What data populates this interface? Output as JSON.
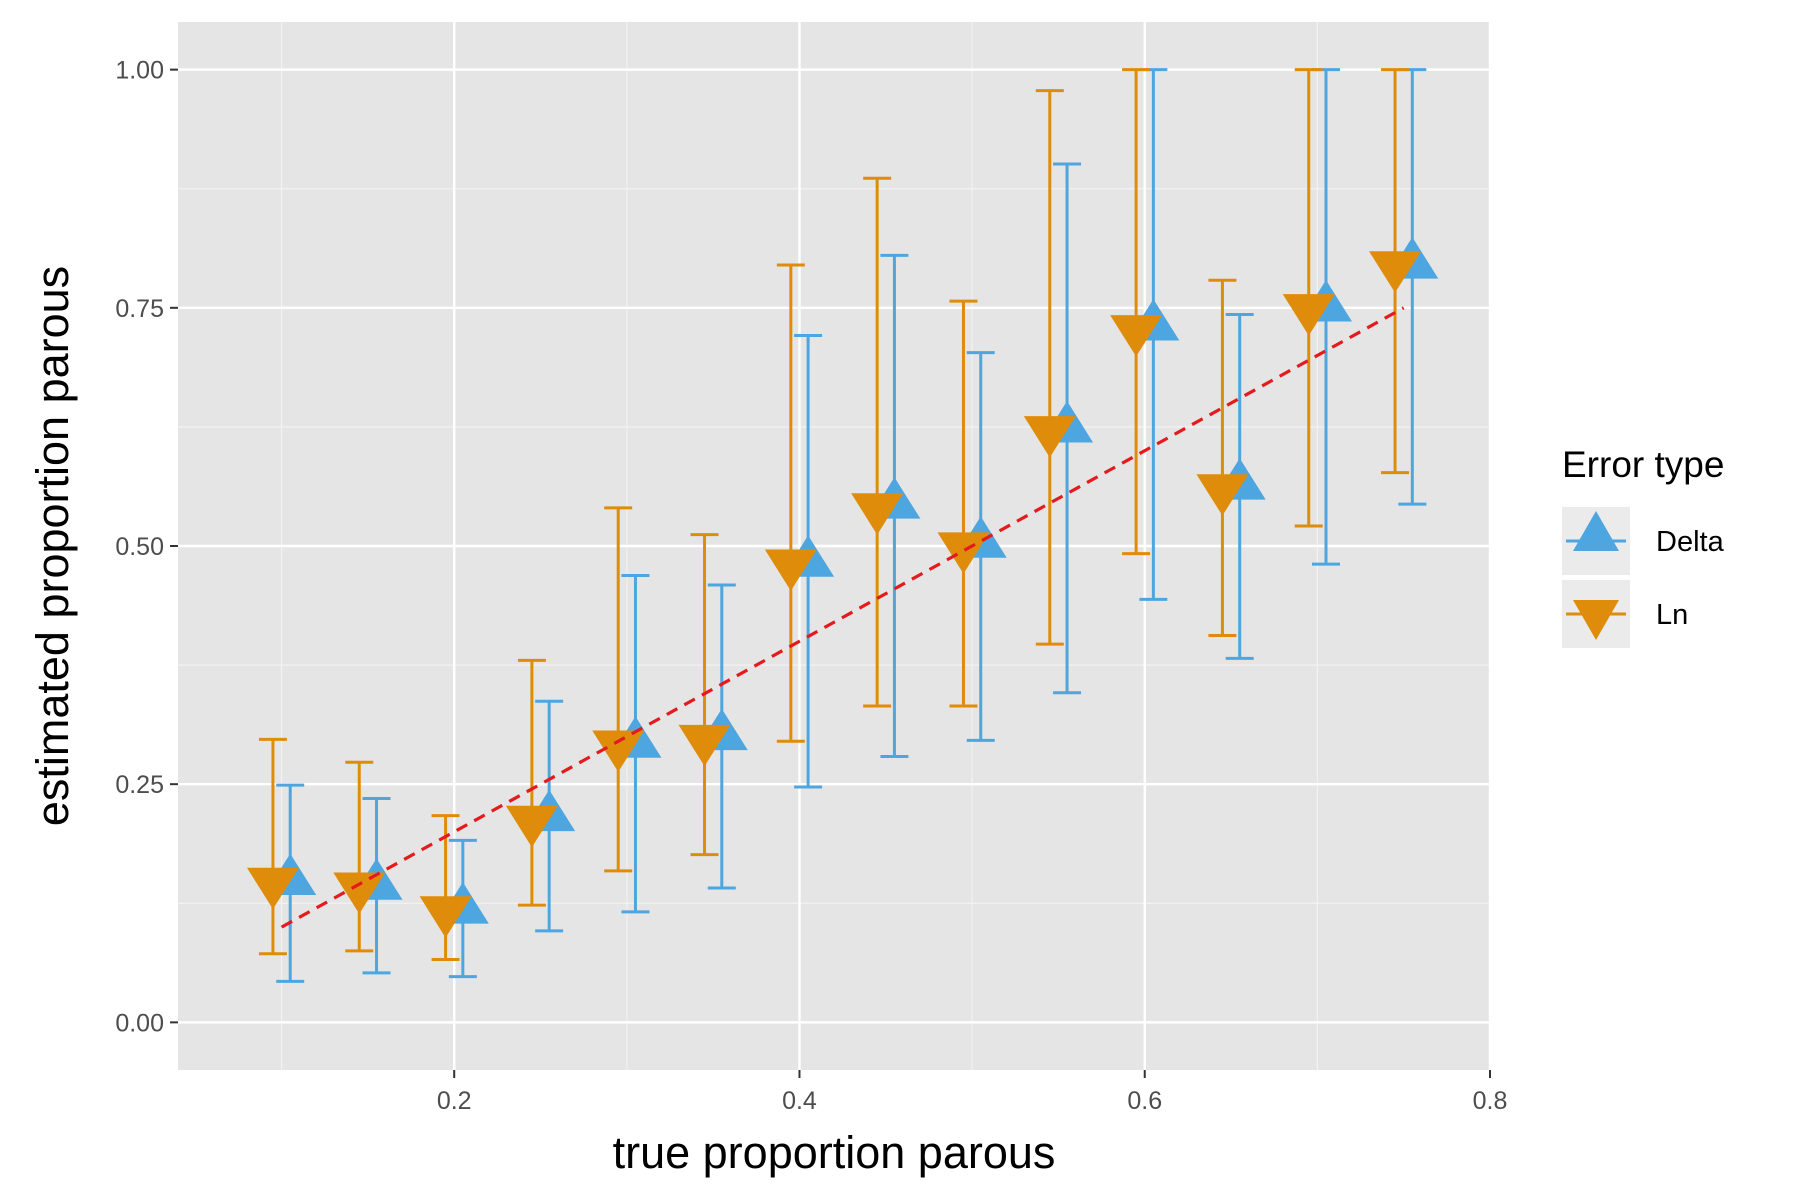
{
  "chart_data": {
    "type": "scatter",
    "xlabel": "true proportion parous",
    "ylabel": "estimated proportion parous",
    "xlim": [
      0.04,
      0.8
    ],
    "ylim": [
      -0.05,
      1.05
    ],
    "x_ticks": [
      0.2,
      0.4,
      0.6,
      0.8
    ],
    "x_tick_labels": [
      "0.2",
      "0.4",
      "0.6",
      "0.8"
    ],
    "y_ticks": [
      0.0,
      0.25,
      0.5,
      0.75,
      1.0
    ],
    "y_tick_labels": [
      "0.00",
      "0.25",
      "0.50",
      "0.75",
      "1.00"
    ],
    "grid": true,
    "legend": {
      "title": "Error type",
      "position": "right",
      "entries": [
        {
          "label": "Delta",
          "shape": "triangle-up",
          "color": "#4ea6e0"
        },
        {
          "label": "Ln",
          "shape": "triangle-down",
          "color": "#e08c0b"
        }
      ]
    },
    "reference_line": {
      "style": "dashed",
      "color": "#e41a1c",
      "x": [
        0.1,
        0.75
      ],
      "y": [
        0.1,
        0.75
      ]
    },
    "series": [
      {
        "name": "Delta",
        "color": "#4ea6e0",
        "marker": "triangle-up",
        "x": [
          0.105,
          0.155,
          0.205,
          0.255,
          0.305,
          0.355,
          0.405,
          0.455,
          0.505,
          0.555,
          0.605,
          0.655,
          0.705,
          0.755
        ],
        "y": [
          0.153,
          0.148,
          0.123,
          0.22,
          0.297,
          0.305,
          0.487,
          0.548,
          0.507,
          0.628,
          0.735,
          0.568,
          0.755,
          0.8
        ],
        "lower": [
          0.043,
          0.052,
          0.048,
          0.096,
          0.116,
          0.141,
          0.247,
          0.279,
          0.296,
          0.346,
          0.444,
          0.382,
          0.481,
          0.544
        ],
        "upper": [
          0.249,
          0.235,
          0.191,
          0.337,
          0.469,
          0.459,
          0.721,
          0.805,
          0.703,
          0.901,
          1.0,
          0.743,
          1.0,
          1.0
        ]
      },
      {
        "name": "Ln",
        "color": "#e08c0b",
        "marker": "triangle-down",
        "x": [
          0.095,
          0.145,
          0.195,
          0.245,
          0.295,
          0.345,
          0.395,
          0.445,
          0.495,
          0.545,
          0.595,
          0.645,
          0.695,
          0.745
        ],
        "y": [
          0.143,
          0.138,
          0.113,
          0.208,
          0.287,
          0.293,
          0.477,
          0.536,
          0.495,
          0.617,
          0.723,
          0.556,
          0.745,
          0.79
        ],
        "lower": [
          0.072,
          0.075,
          0.066,
          0.123,
          0.159,
          0.176,
          0.295,
          0.332,
          0.332,
          0.397,
          0.492,
          0.406,
          0.521,
          0.577
        ],
        "upper": [
          0.297,
          0.273,
          0.217,
          0.38,
          0.54,
          0.512,
          0.795,
          0.886,
          0.757,
          0.978,
          1.0,
          0.779,
          1.0,
          1.0
        ]
      }
    ]
  }
}
